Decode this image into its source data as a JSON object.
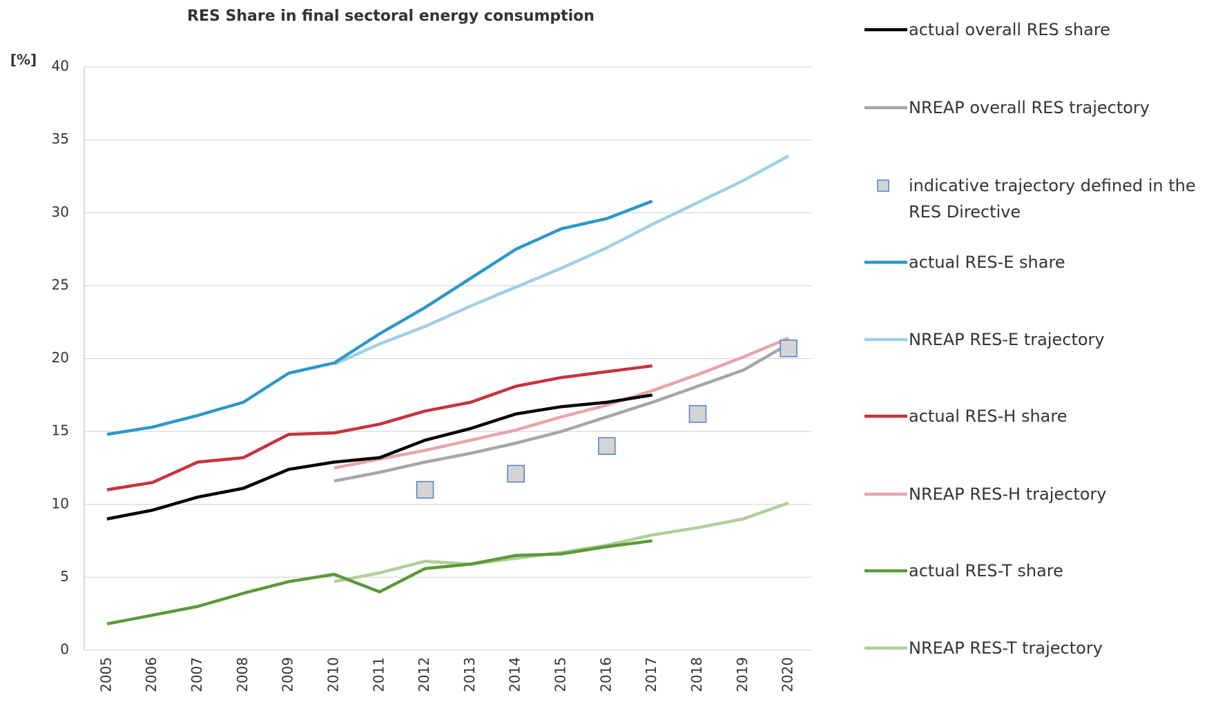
{
  "chart_data": {
    "type": "line",
    "title": "RES Share in final sectoral energy consumption",
    "y_label": "[%]",
    "categories": [
      "2005",
      "2006",
      "2007",
      "2008",
      "2009",
      "2010",
      "2011",
      "2012",
      "2013",
      "2014",
      "2015",
      "2016",
      "2017",
      "2018",
      "2019",
      "2020"
    ],
    "ylim": [
      0,
      40
    ],
    "yticks": [
      0,
      5,
      10,
      15,
      20,
      25,
      30,
      35,
      40
    ],
    "grid": true,
    "legend": "right",
    "series": [
      {
        "name": "actual overall RES share",
        "color": "#000000",
        "values": [
          9.0,
          9.6,
          10.5,
          11.1,
          12.4,
          12.9,
          13.2,
          14.4,
          15.2,
          16.2,
          16.7,
          17.0,
          17.5,
          null,
          null,
          null
        ]
      },
      {
        "name": "NREAP overall RES trajectory",
        "color": "#a6a6a6",
        "values": [
          null,
          null,
          null,
          null,
          null,
          11.6,
          12.2,
          12.9,
          13.5,
          14.2,
          15.0,
          16.0,
          17.0,
          18.1,
          19.2,
          21.0
        ]
      },
      {
        "name": "indicative trajectory defined in the RES Directive",
        "color": "#d4d4d4",
        "marker": "square",
        "edge_color": "#4a7fd0",
        "values": [
          null,
          null,
          null,
          null,
          null,
          null,
          null,
          11.0,
          null,
          12.1,
          null,
          14.0,
          null,
          16.2,
          null,
          20.7
        ]
      },
      {
        "name": "actual RES-E share",
        "color": "#2e97c8",
        "values": [
          14.8,
          15.3,
          16.1,
          17.0,
          19.0,
          19.7,
          21.7,
          23.5,
          25.5,
          27.5,
          28.9,
          29.6,
          30.8,
          null,
          null,
          null
        ]
      },
      {
        "name": "NREAP RES-E trajectory",
        "color": "#9fcfe6",
        "values": [
          null,
          null,
          null,
          null,
          null,
          19.6,
          21.0,
          22.2,
          23.6,
          24.9,
          26.2,
          27.6,
          29.2,
          30.7,
          32.2,
          33.9
        ]
      },
      {
        "name": "actual RES-H share",
        "color": "#c8323c",
        "values": [
          11.0,
          11.5,
          12.9,
          13.2,
          14.8,
          14.9,
          15.5,
          16.4,
          17.0,
          18.1,
          18.7,
          19.1,
          19.5,
          null,
          null,
          null
        ]
      },
      {
        "name": "NREAP RES-H trajectory",
        "color": "#e8a4a8",
        "values": [
          null,
          null,
          null,
          null,
          null,
          12.5,
          13.1,
          13.7,
          14.4,
          15.1,
          16.0,
          16.8,
          17.8,
          18.9,
          20.1,
          21.4
        ]
      },
      {
        "name": "actual RES-T share",
        "color": "#5a9a3a",
        "values": [
          1.8,
          2.4,
          3.0,
          3.9,
          4.7,
          5.2,
          4.0,
          5.6,
          5.9,
          6.5,
          6.6,
          7.1,
          7.5,
          null,
          null,
          null
        ]
      },
      {
        "name": "NREAP RES-T trajectory",
        "color": "#b0cf98",
        "values": [
          null,
          null,
          null,
          null,
          null,
          4.7,
          5.3,
          6.1,
          5.9,
          6.3,
          6.7,
          7.2,
          7.9,
          8.4,
          9.0,
          10.1
        ]
      }
    ]
  }
}
